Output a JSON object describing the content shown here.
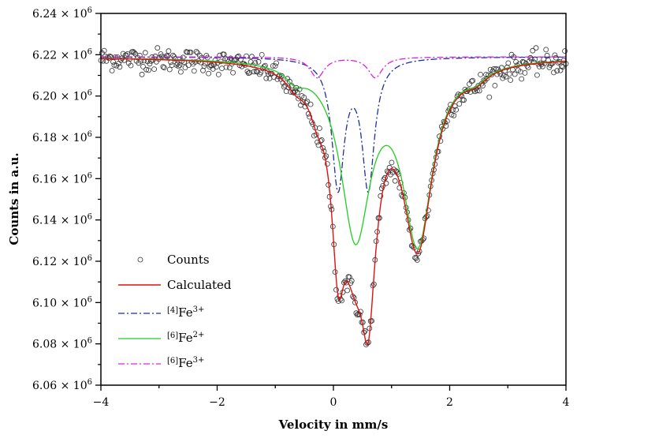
{
  "chart_data": {
    "type": "scatter+line",
    "title": "",
    "xlabel": "Velocity in mm/s",
    "ylabel": "Counts in a.u.",
    "xlim": [
      -4,
      4
    ],
    "ylim": [
      6060000.0,
      6240000.0
    ],
    "x_ticks": [
      -4,
      -2,
      0,
      2,
      4
    ],
    "x_tick_labels": [
      "−4",
      "−2",
      "0",
      "2",
      "4"
    ],
    "y_ticks": [
      6.06,
      6.08,
      6.1,
      6.12,
      6.14,
      6.16,
      6.18,
      6.2,
      6.22,
      6.24
    ],
    "y_tick_labels": [
      "6.06",
      "6.08",
      "6.10",
      "6.12",
      "6.14",
      "6.16",
      "6.18",
      "6.20",
      "6.22",
      "6.24"
    ],
    "y_tick_suffix": "× 10",
    "y_tick_exponent": "6",
    "grid": false,
    "legend_position": "bottom-left",
    "baseline_millions": 6.219,
    "components": [
      {
        "name": "[4]Fe3+",
        "prefix": "[4]",
        "ion": "Fe",
        "charge": "3+",
        "color": "#1f2f9c",
        "dash": "8,3,2,3",
        "lines": [
          {
            "center": 0.08,
            "depth": 0.062,
            "fwhm": 0.26
          },
          {
            "center": 0.6,
            "depth": 0.062,
            "fwhm": 0.26
          }
        ]
      },
      {
        "name": "[6]Fe2+",
        "prefix": "[6]",
        "ion": "Fe",
        "charge": "2+",
        "color": "#22cc22",
        "dash": "",
        "lines": [
          {
            "center": 0.38,
            "depth": 0.084,
            "fwhm": 0.62
          },
          {
            "center": 1.45,
            "depth": 0.086,
            "fwhm": 0.62
          },
          {
            "center": -0.65,
            "depth": 0.006,
            "fwhm": 0.4
          },
          {
            "center": 2.45,
            "depth": 0.005,
            "fwhm": 0.5
          }
        ]
      },
      {
        "name": "[6]Fe3+",
        "prefix": "[6]",
        "ion": "Fe",
        "charge": "3+",
        "color": "#e020e0",
        "dash": "8,3,2,3",
        "lines": [
          {
            "center": -0.28,
            "depth": 0.01,
            "fwhm": 0.3
          },
          {
            "center": 0.72,
            "depth": 0.01,
            "fwhm": 0.3
          }
        ]
      }
    ],
    "calculated": {
      "name": "Calculated",
      "color": "#e01010"
    },
    "counts": {
      "name": "Counts",
      "n_points": 420,
      "noise_millions": 0.0028
    }
  }
}
